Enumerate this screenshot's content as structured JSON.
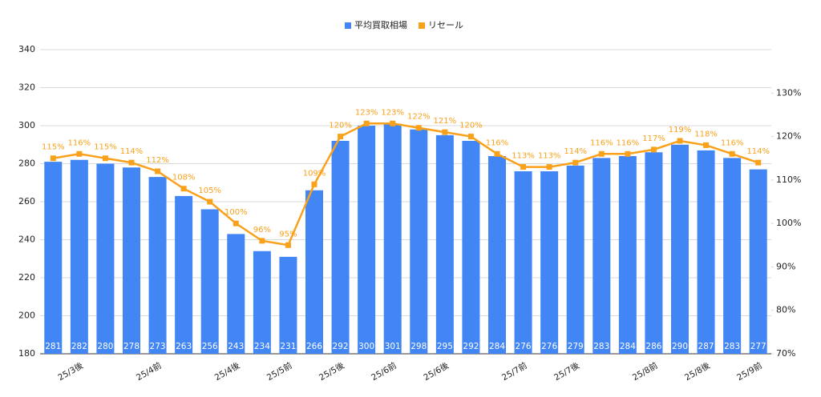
{
  "chart_data": {
    "type": "bar_line",
    "categories": [
      null,
      "25/3後",
      null,
      null,
      "25/4前",
      null,
      null,
      "25/4後",
      null,
      "25/5前",
      null,
      "25/5後",
      null,
      "25/6前",
      null,
      "25/6後",
      null,
      null,
      "25/7前",
      null,
      "25/7後",
      null,
      null,
      "25/8前",
      null,
      "25/8後",
      null,
      "25/9前"
    ],
    "series": [
      {
        "name": "平均買取相場",
        "color": "#4285f4",
        "type": "bar",
        "values": [
          281,
          282,
          280,
          278,
          273,
          263,
          256,
          243,
          234,
          231,
          266,
          292,
          300,
          301,
          298,
          295,
          292,
          284,
          276,
          276,
          279,
          283,
          284,
          286,
          290,
          287,
          283,
          277
        ]
      },
      {
        "name": "リセール",
        "color": "#f9a11b",
        "type": "line",
        "axis": "y2",
        "values": [
          115,
          116,
          115,
          114,
          112,
          108,
          105,
          100,
          96,
          95,
          109,
          120,
          123,
          123,
          122,
          121,
          120,
          116,
          113,
          113,
          114,
          116,
          116,
          117,
          119,
          118,
          116,
          114
        ],
        "value_labels": [
          "115%",
          "116%",
          "115%",
          "114%",
          "112%",
          "108%",
          "105%",
          "100%",
          "96%",
          "95%",
          "109%",
          "120%",
          "123%",
          "123%",
          "122%",
          "121%",
          "120%",
          "116%",
          "113%",
          "113%",
          "114%",
          "116%",
          "116%",
          "117%",
          "119%",
          "118%",
          "116%",
          "114%"
        ]
      }
    ],
    "ylim": [
      180,
      340
    ],
    "yticks": [
      180,
      200,
      220,
      240,
      260,
      280,
      300,
      320,
      340
    ],
    "y2lim": [
      70,
      140
    ],
    "y2ticks": [
      {
        "value": 70,
        "label": "70%"
      },
      {
        "value": 80,
        "label": "80%"
      },
      {
        "value": 90,
        "label": "90%"
      },
      {
        "value": 100,
        "label": "100%"
      },
      {
        "value": 110,
        "label": "110%"
      },
      {
        "value": 120,
        "label": "120%"
      },
      {
        "value": 130,
        "label": "130%"
      }
    ],
    "grid": true,
    "legend": "top"
  }
}
